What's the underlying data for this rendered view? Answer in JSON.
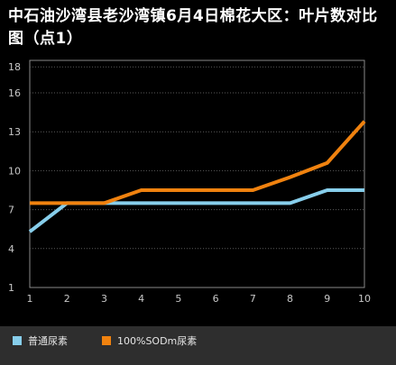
{
  "chart_data": {
    "type": "line",
    "title": "中石油沙湾县老沙湾镇6月4日棉花大区：叶片数对比图（点1）",
    "x": [
      1,
      2,
      3,
      4,
      5,
      6,
      7,
      8,
      9,
      10
    ],
    "xticks": [
      "1",
      "2",
      "3",
      "4",
      "5",
      "6",
      "7",
      "8",
      "9",
      "10"
    ],
    "yticks": [
      "1",
      "4",
      "7",
      "10",
      "13",
      "16",
      "18"
    ],
    "ylim": [
      1,
      18.5
    ],
    "grid": true,
    "legend_position": "bottom",
    "series": [
      {
        "name": "普通尿素",
        "color": "#87ceeb",
        "values": [
          5.3,
          7.5,
          7.5,
          7.5,
          7.5,
          7.5,
          7.5,
          7.5,
          8.5,
          8.5
        ]
      },
      {
        "name": "100%SODm尿素",
        "color": "#f0820f",
        "values": [
          7.5,
          7.5,
          7.5,
          8.5,
          8.5,
          8.5,
          8.5,
          9.5,
          10.6,
          13.8
        ]
      }
    ]
  }
}
